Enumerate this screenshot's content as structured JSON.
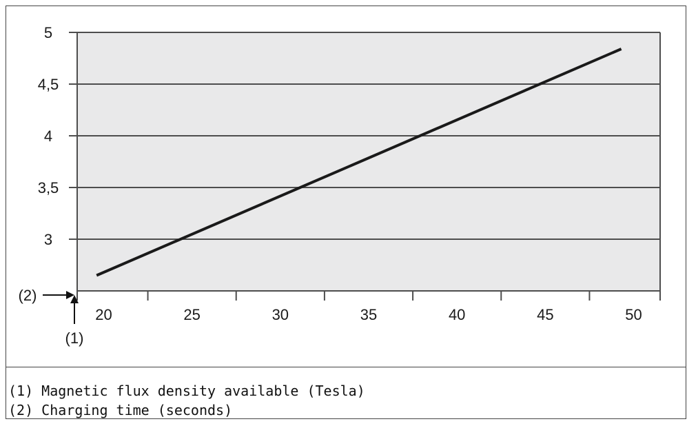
{
  "chart_data": {
    "type": "line",
    "x_ticks": [
      "20",
      "25",
      "30",
      "35",
      "40",
      "45",
      "50"
    ],
    "y_ticks": [
      "3",
      "3,5",
      "4",
      "4,5",
      "5"
    ],
    "xlim": [
      18.5,
      51.5
    ],
    "ylim": [
      2.5,
      5
    ],
    "grid": true,
    "series": [
      {
        "x": [
          19.6,
          49.3
        ],
        "y": [
          2.65,
          4.84
        ]
      }
    ],
    "x_marker": "(1)",
    "y_marker": "(2)",
    "colors": {
      "plot_bg": "#e9e9ea",
      "line": "#1a1a1a",
      "grid": "#4d4d4d"
    }
  },
  "legend_notes": [
    "(1) Magnetic flux density available (Tesla)",
    "(2) Charging time (seconds)"
  ]
}
